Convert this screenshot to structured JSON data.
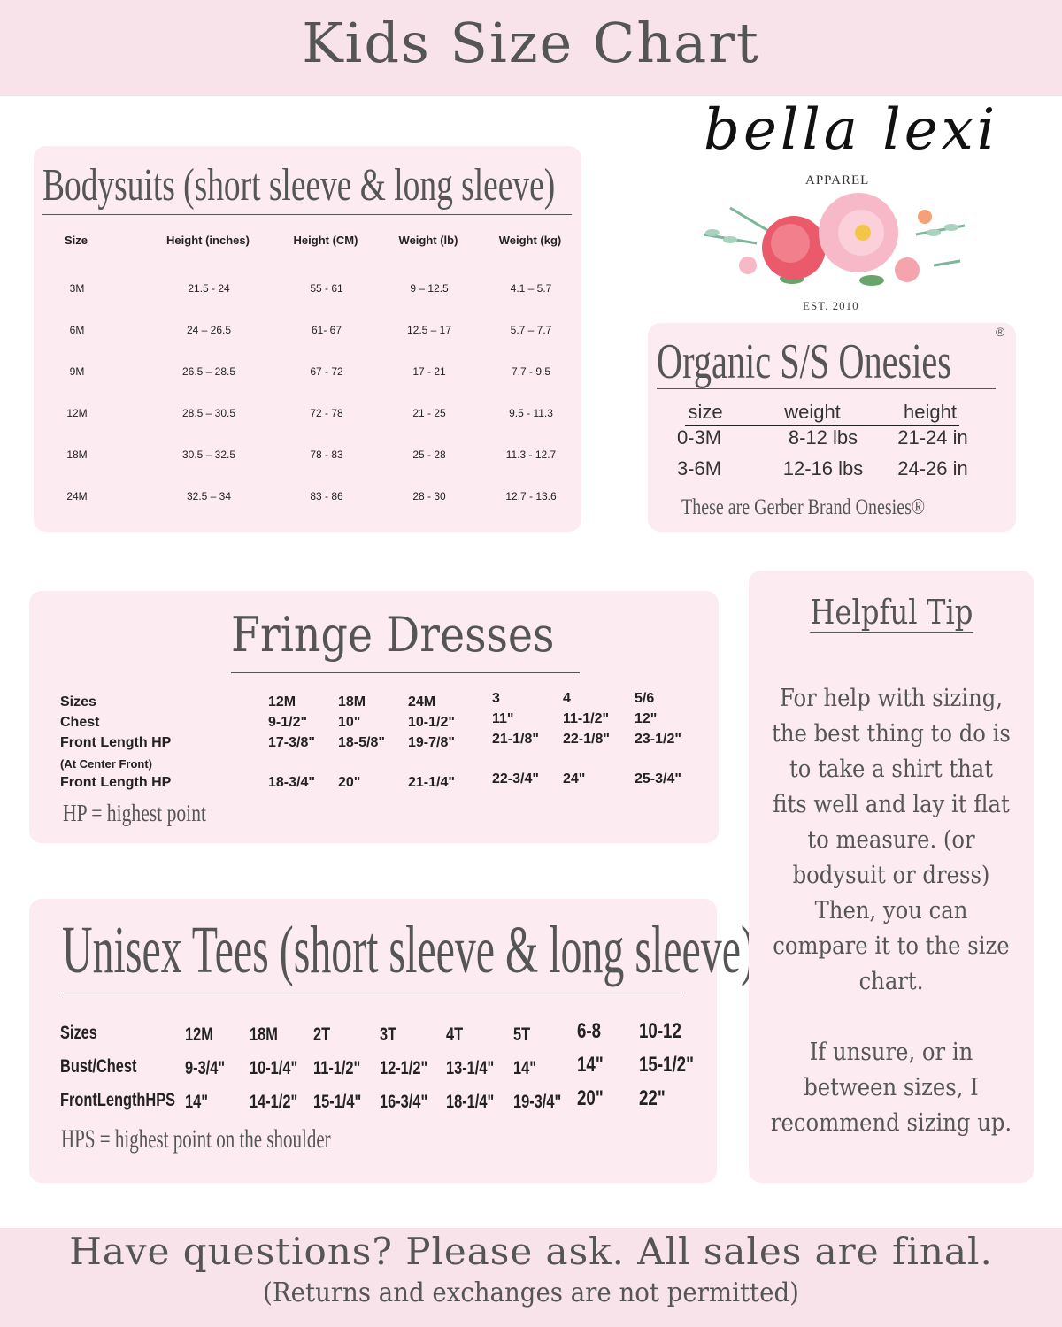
{
  "header": {
    "title": "Kids Size Chart"
  },
  "logo": {
    "brand": "bella lexi",
    "sub": "APPAREL",
    "est": "EST. 2010"
  },
  "bodysuits": {
    "title": "Bodysuits (short sleeve & long sleeve)",
    "headers": [
      "Size",
      "Height (inches)",
      "Height (CM)",
      "Weight (lb)",
      "Weight (kg)"
    ],
    "rows": [
      [
        "3M",
        "21.5 - 24",
        "55 - 61",
        "9 – 12.5",
        "4.1 – 5.7"
      ],
      [
        "6M",
        "24 – 26.5",
        "61- 67",
        "12.5 – 17",
        "5.7 – 7.7"
      ],
      [
        "9M",
        "26.5 – 28.5",
        "67 - 72",
        "17 - 21",
        "7.7 - 9.5"
      ],
      [
        "12M",
        "28.5 – 30.5",
        "72 - 78",
        "21 - 25",
        "9.5 - 11.3"
      ],
      [
        "18M",
        "30.5 – 32.5",
        "78 - 83",
        "25 - 28",
        "11.3 - 12.7"
      ],
      [
        "24M",
        "32.5 – 34",
        "83 - 86",
        "28 - 30",
        "12.7 - 13.6"
      ]
    ]
  },
  "onesies": {
    "title": "Organic S/S Onesies",
    "registered": "®",
    "headers": [
      "size",
      "weight",
      "height"
    ],
    "rows": [
      [
        "0-3M",
        "8-12 lbs",
        "21-24 in"
      ],
      [
        "3-6M",
        "12-16 lbs",
        "24-26 in"
      ]
    ],
    "note": "These are Gerber Brand Onesies®"
  },
  "fringe": {
    "title": "Fringe Dresses",
    "labels": [
      "Sizes",
      "Chest",
      "Front Length HP",
      "(At Center Front)",
      "Front Length HP"
    ],
    "columns": [
      [
        "12M",
        "9-1/2\"",
        "17-3/8\"",
        "18-3/4\""
      ],
      [
        "18M",
        "10\"",
        "18-5/8\"",
        "20\""
      ],
      [
        "24M",
        "10-1/2\"",
        "19-7/8\"",
        "21-1/4\""
      ],
      [
        "3",
        "11\"",
        "21-1/8\"",
        "22-3/4\""
      ],
      [
        "4",
        "11-1/2\"",
        "22-1/8\"",
        "24\""
      ],
      [
        "5/6",
        "12\"",
        "23-1/2\"",
        "25-3/4\""
      ]
    ],
    "note": "HP = highest point"
  },
  "tees": {
    "title": "Unisex Tees (short sleeve & long sleeve)",
    "labels": [
      "Sizes",
      "Bust/Chest",
      "FrontLengthHPS"
    ],
    "columns": [
      [
        "12M",
        "9-3/4\"",
        "14\""
      ],
      [
        "18M",
        "10-1/4\"",
        "14-1/2\""
      ],
      [
        "2T",
        "11-1/2\"",
        "15-1/4\""
      ],
      [
        "3T",
        "12-1/2\"",
        "16-3/4\""
      ],
      [
        "4T",
        "13-1/4\"",
        "18-1/4\""
      ],
      [
        "5T",
        "14\"",
        "19-3/4\""
      ],
      [
        "6-8",
        "14\"",
        "20\""
      ],
      [
        "10-12",
        "15-1/2\"",
        "22\""
      ]
    ],
    "note": "HPS = highest point on the shoulder"
  },
  "tip": {
    "title": "Helpful Tip",
    "lines": [
      "For help with sizing,",
      "the best thing to do is",
      "to take a shirt that",
      "fits well and lay it flat",
      "to measure. (or",
      "bodysuit or dress)",
      "Then, you can",
      "compare it to the size",
      "chart.",
      "",
      "If unsure, or in",
      "between sizes, I",
      "recommend sizing up."
    ]
  },
  "footer": {
    "main": "Have questions? Please ask. All sales are final.",
    "sub": "(Returns and exchanges are not permitted)"
  },
  "colors": {
    "band": "#f9e3ea",
    "panel": "#fcebf1",
    "text": "#555555"
  }
}
